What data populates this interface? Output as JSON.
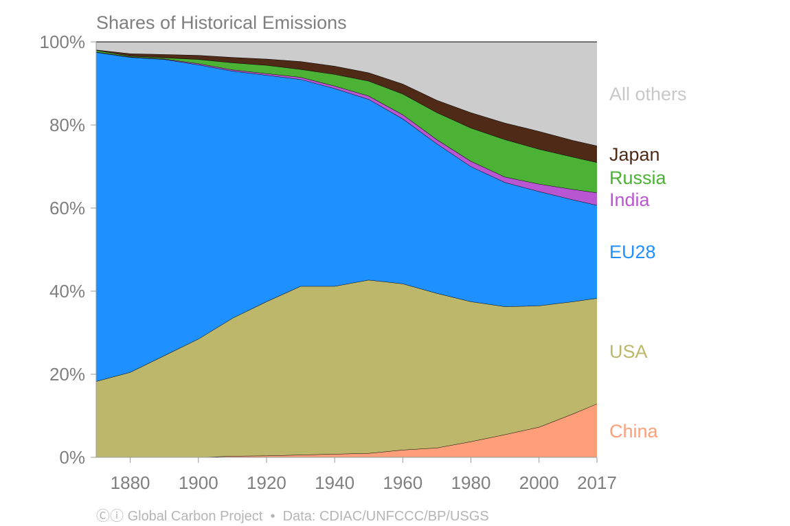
{
  "chart_data": {
    "type": "area",
    "stacked": true,
    "title": "Shares of Historical Emissions",
    "xlabel": "",
    "ylabel": "",
    "xlim": [
      1870,
      2017
    ],
    "ylim": [
      0,
      100
    ],
    "x_ticks": [
      "1880",
      "1900",
      "1920",
      "1940",
      "1960",
      "1980",
      "2000",
      "2017"
    ],
    "y_ticks": [
      "0%",
      "20%",
      "40%",
      "60%",
      "80%",
      "100%"
    ],
    "grid": false,
    "legend": "direct labels at right",
    "x": [
      1870,
      1880,
      1890,
      1900,
      1910,
      1920,
      1930,
      1940,
      1950,
      1960,
      1970,
      1980,
      1990,
      2000,
      2010,
      2017
    ],
    "series": [
      {
        "name": "China",
        "color": "#ff9f7a",
        "values": [
          0,
          0,
          0,
          0,
          0.3,
          0.4,
          0.6,
          0.8,
          1.0,
          1.8,
          2.3,
          3.8,
          5.5,
          7.3,
          10.5,
          12.9
        ]
      },
      {
        "name": "USA",
        "color": "#bdb76b",
        "values": [
          18.3,
          20.5,
          24.5,
          28.5,
          33.2,
          37.1,
          40.6,
          40.4,
          41.7,
          40.0,
          37.2,
          33.7,
          30.8,
          29.2,
          27.0,
          25.4
        ]
      },
      {
        "name": "EU28",
        "color": "#1e90ff",
        "values": [
          79.2,
          75.8,
          71.3,
          66.0,
          59.5,
          54.5,
          49.8,
          47.6,
          43.5,
          39.7,
          36.0,
          32.5,
          29.9,
          27.5,
          24.5,
          22.4
        ]
      },
      {
        "name": "India",
        "color": "#b956d1",
        "values": [
          0.1,
          0.1,
          0.1,
          0.3,
          0.3,
          0.4,
          0.5,
          0.6,
          0.8,
          1.0,
          1.0,
          1.3,
          1.3,
          1.8,
          2.5,
          3.0
        ]
      },
      {
        "name": "Russia",
        "color": "#4bb236",
        "values": [
          0.4,
          0.2,
          0.3,
          1.0,
          1.7,
          2.0,
          1.9,
          2.8,
          3.6,
          5.0,
          6.5,
          8.0,
          9.0,
          8.4,
          7.8,
          7.3
        ]
      },
      {
        "name": "Japan",
        "color": "#4f2a17",
        "values": [
          0.1,
          0.6,
          0.8,
          1.0,
          1.3,
          1.5,
          1.9,
          2.0,
          2.0,
          2.4,
          3.0,
          3.7,
          4.0,
          4.3,
          4.0,
          4.0
        ]
      },
      {
        "name": "All others",
        "color": "#cccccc",
        "label_color": "#c8c8c8",
        "values": [
          1.9,
          2.8,
          3.0,
          3.2,
          3.7,
          4.1,
          4.7,
          5.8,
          7.4,
          10.1,
          14.0,
          17.0,
          19.5,
          21.5,
          23.7,
          25.0
        ]
      }
    ]
  },
  "footer": {
    "license_icon": "creative-commons-by-icon",
    "license_glyph": "Ⓒⓘ",
    "credit": "Global Carbon Project",
    "separator": "•",
    "source": "Data: CDIAC/UNFCCC/BP/USGS"
  }
}
